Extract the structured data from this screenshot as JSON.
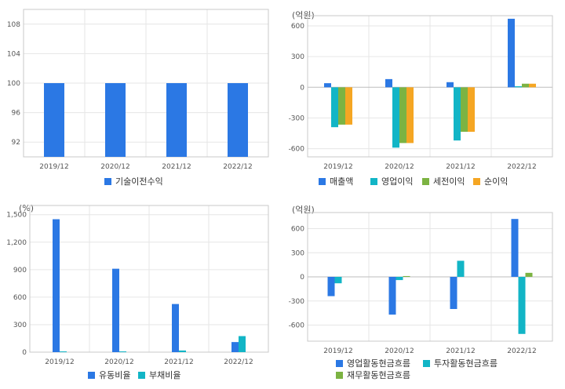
{
  "colors": {
    "blue": "#2b78e4",
    "teal": "#12b5c6",
    "green": "#7cb342",
    "orange": "#f5a623"
  },
  "chart_data": [
    {
      "type": "bar",
      "unit": "",
      "categories": [
        "2019/12",
        "2020/12",
        "2021/12",
        "2022/12"
      ],
      "ylim": [
        90,
        110
      ],
      "yticks": [
        92,
        96,
        100,
        104,
        108
      ],
      "ytick_labels": [
        "92",
        "96",
        "100",
        "104",
        "108"
      ],
      "series": [
        {
          "name": "기술이전수익",
          "color": "#2b78e4",
          "values": [
            100,
            100,
            100,
            100
          ]
        }
      ],
      "legend": "bottom"
    },
    {
      "type": "bar",
      "unit": "(억원)",
      "categories": [
        "2019/12",
        "2020/12",
        "2021/12",
        "2022/12"
      ],
      "ylim": [
        -680,
        700
      ],
      "yticks": [
        -600,
        -300,
        0,
        300,
        600
      ],
      "ytick_labels": [
        "-600",
        "-300",
        "0",
        "300",
        "600"
      ],
      "series": [
        {
          "name": "매출액",
          "color": "#2b78e4",
          "values": [
            40,
            80,
            50,
            670
          ]
        },
        {
          "name": "영업이익",
          "color": "#12b5c6",
          "values": [
            -390,
            -590,
            -520,
            10
          ]
        },
        {
          "name": "세전이익",
          "color": "#7cb342",
          "values": [
            -365,
            -545,
            -435,
            35
          ]
        },
        {
          "name": "순이익",
          "color": "#f5a623",
          "values": [
            -365,
            -545,
            -435,
            35
          ]
        }
      ],
      "legend": "bottom"
    },
    {
      "type": "bar",
      "unit": "(%)",
      "categories": [
        "2019/12",
        "2020/12",
        "2021/12",
        "2022/12"
      ],
      "ylim": [
        0,
        1600
      ],
      "yticks": [
        0,
        300,
        600,
        900,
        1200,
        1500
      ],
      "ytick_labels": [
        "0",
        "300",
        "600",
        "900",
        "1,200",
        "1,500"
      ],
      "series": [
        {
          "name": "유동비율",
          "color": "#2b78e4",
          "values": [
            1450,
            910,
            525,
            110
          ]
        },
        {
          "name": "부채비율",
          "color": "#12b5c6",
          "values": [
            8,
            8,
            18,
            175
          ]
        }
      ],
      "legend": "bottom"
    },
    {
      "type": "bar",
      "unit": "(억원)",
      "categories": [
        "2019/12",
        "2020/12",
        "2021/12",
        "2022/12"
      ],
      "ylim": [
        -800,
        800
      ],
      "yticks": [
        -600,
        -300,
        0,
        300,
        600
      ],
      "ytick_labels": [
        "-600",
        "-300",
        "0",
        "300",
        "600"
      ],
      "series": [
        {
          "name": "영업활동현금흐름",
          "color": "#2b78e4",
          "values": [
            -240,
            -470,
            -400,
            720
          ]
        },
        {
          "name": "투자활동현금흐름",
          "color": "#12b5c6",
          "values": [
            -80,
            -40,
            200,
            -710
          ]
        },
        {
          "name": "재무활동현금흐름",
          "color": "#7cb342",
          "values": [
            0,
            10,
            0,
            50
          ]
        }
      ],
      "legend": "bottom"
    }
  ]
}
